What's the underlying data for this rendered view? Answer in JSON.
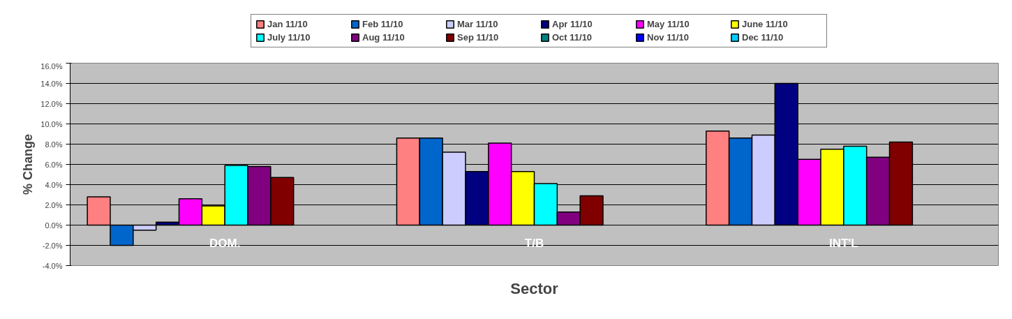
{
  "chart_data": {
    "type": "bar",
    "xlabel": "Sector",
    "ylabel": "% Change",
    "categories": [
      "DOM.",
      "T/B",
      "INT'L"
    ],
    "series": [
      {
        "name": "Jan 11/10",
        "color": "#ff8080",
        "values": [
          2.8,
          8.6,
          9.3
        ]
      },
      {
        "name": "Feb 11/10",
        "color": "#0066cc",
        "values": [
          -2.0,
          8.6,
          8.6
        ]
      },
      {
        "name": "Mar 11/10",
        "color": "#ccccff",
        "values": [
          -0.5,
          7.2,
          8.9
        ]
      },
      {
        "name": "Apr 11/10",
        "color": "#000080",
        "values": [
          0.3,
          5.3,
          14.0
        ]
      },
      {
        "name": "May 11/10",
        "color": "#ff00ff",
        "values": [
          2.6,
          8.1,
          6.5
        ]
      },
      {
        "name": "June 11/10",
        "color": "#ffff00",
        "values": [
          1.9,
          5.3,
          7.5
        ]
      },
      {
        "name": "July 11/10",
        "color": "#00ffff",
        "values": [
          5.9,
          4.1,
          7.8
        ]
      },
      {
        "name": "Aug 11/10",
        "color": "#800080",
        "values": [
          5.8,
          1.3,
          6.7
        ]
      },
      {
        "name": "Sep 11/10",
        "color": "#800000",
        "values": [
          4.7,
          2.9,
          8.2
        ]
      },
      {
        "name": "Oct 11/10",
        "color": "#008080",
        "values": [
          null,
          null,
          null
        ]
      },
      {
        "name": "Nov 11/10",
        "color": "#0000ff",
        "values": [
          null,
          null,
          null
        ]
      },
      {
        "name": "Dec 11/10",
        "color": "#00ccff",
        "values": [
          null,
          null,
          null
        ]
      }
    ],
    "ylim": [
      -4,
      16
    ],
    "yticks": [
      {
        "value": -4,
        "label": "-4.0%"
      },
      {
        "value": -2,
        "label": "-2.0%"
      },
      {
        "value": 0,
        "label": "0.0%"
      },
      {
        "value": 2,
        "label": "2.0%"
      },
      {
        "value": 4,
        "label": "4.0%"
      },
      {
        "value": 6,
        "label": "6.0%"
      },
      {
        "value": 8,
        "label": "8.0%"
      },
      {
        "value": 10,
        "label": "10.0%"
      },
      {
        "value": 12,
        "label": "12.0%"
      },
      {
        "value": 14,
        "label": "14.0%"
      },
      {
        "value": 16,
        "label": "16.0%"
      }
    ],
    "grid": "y",
    "legend": "top"
  }
}
